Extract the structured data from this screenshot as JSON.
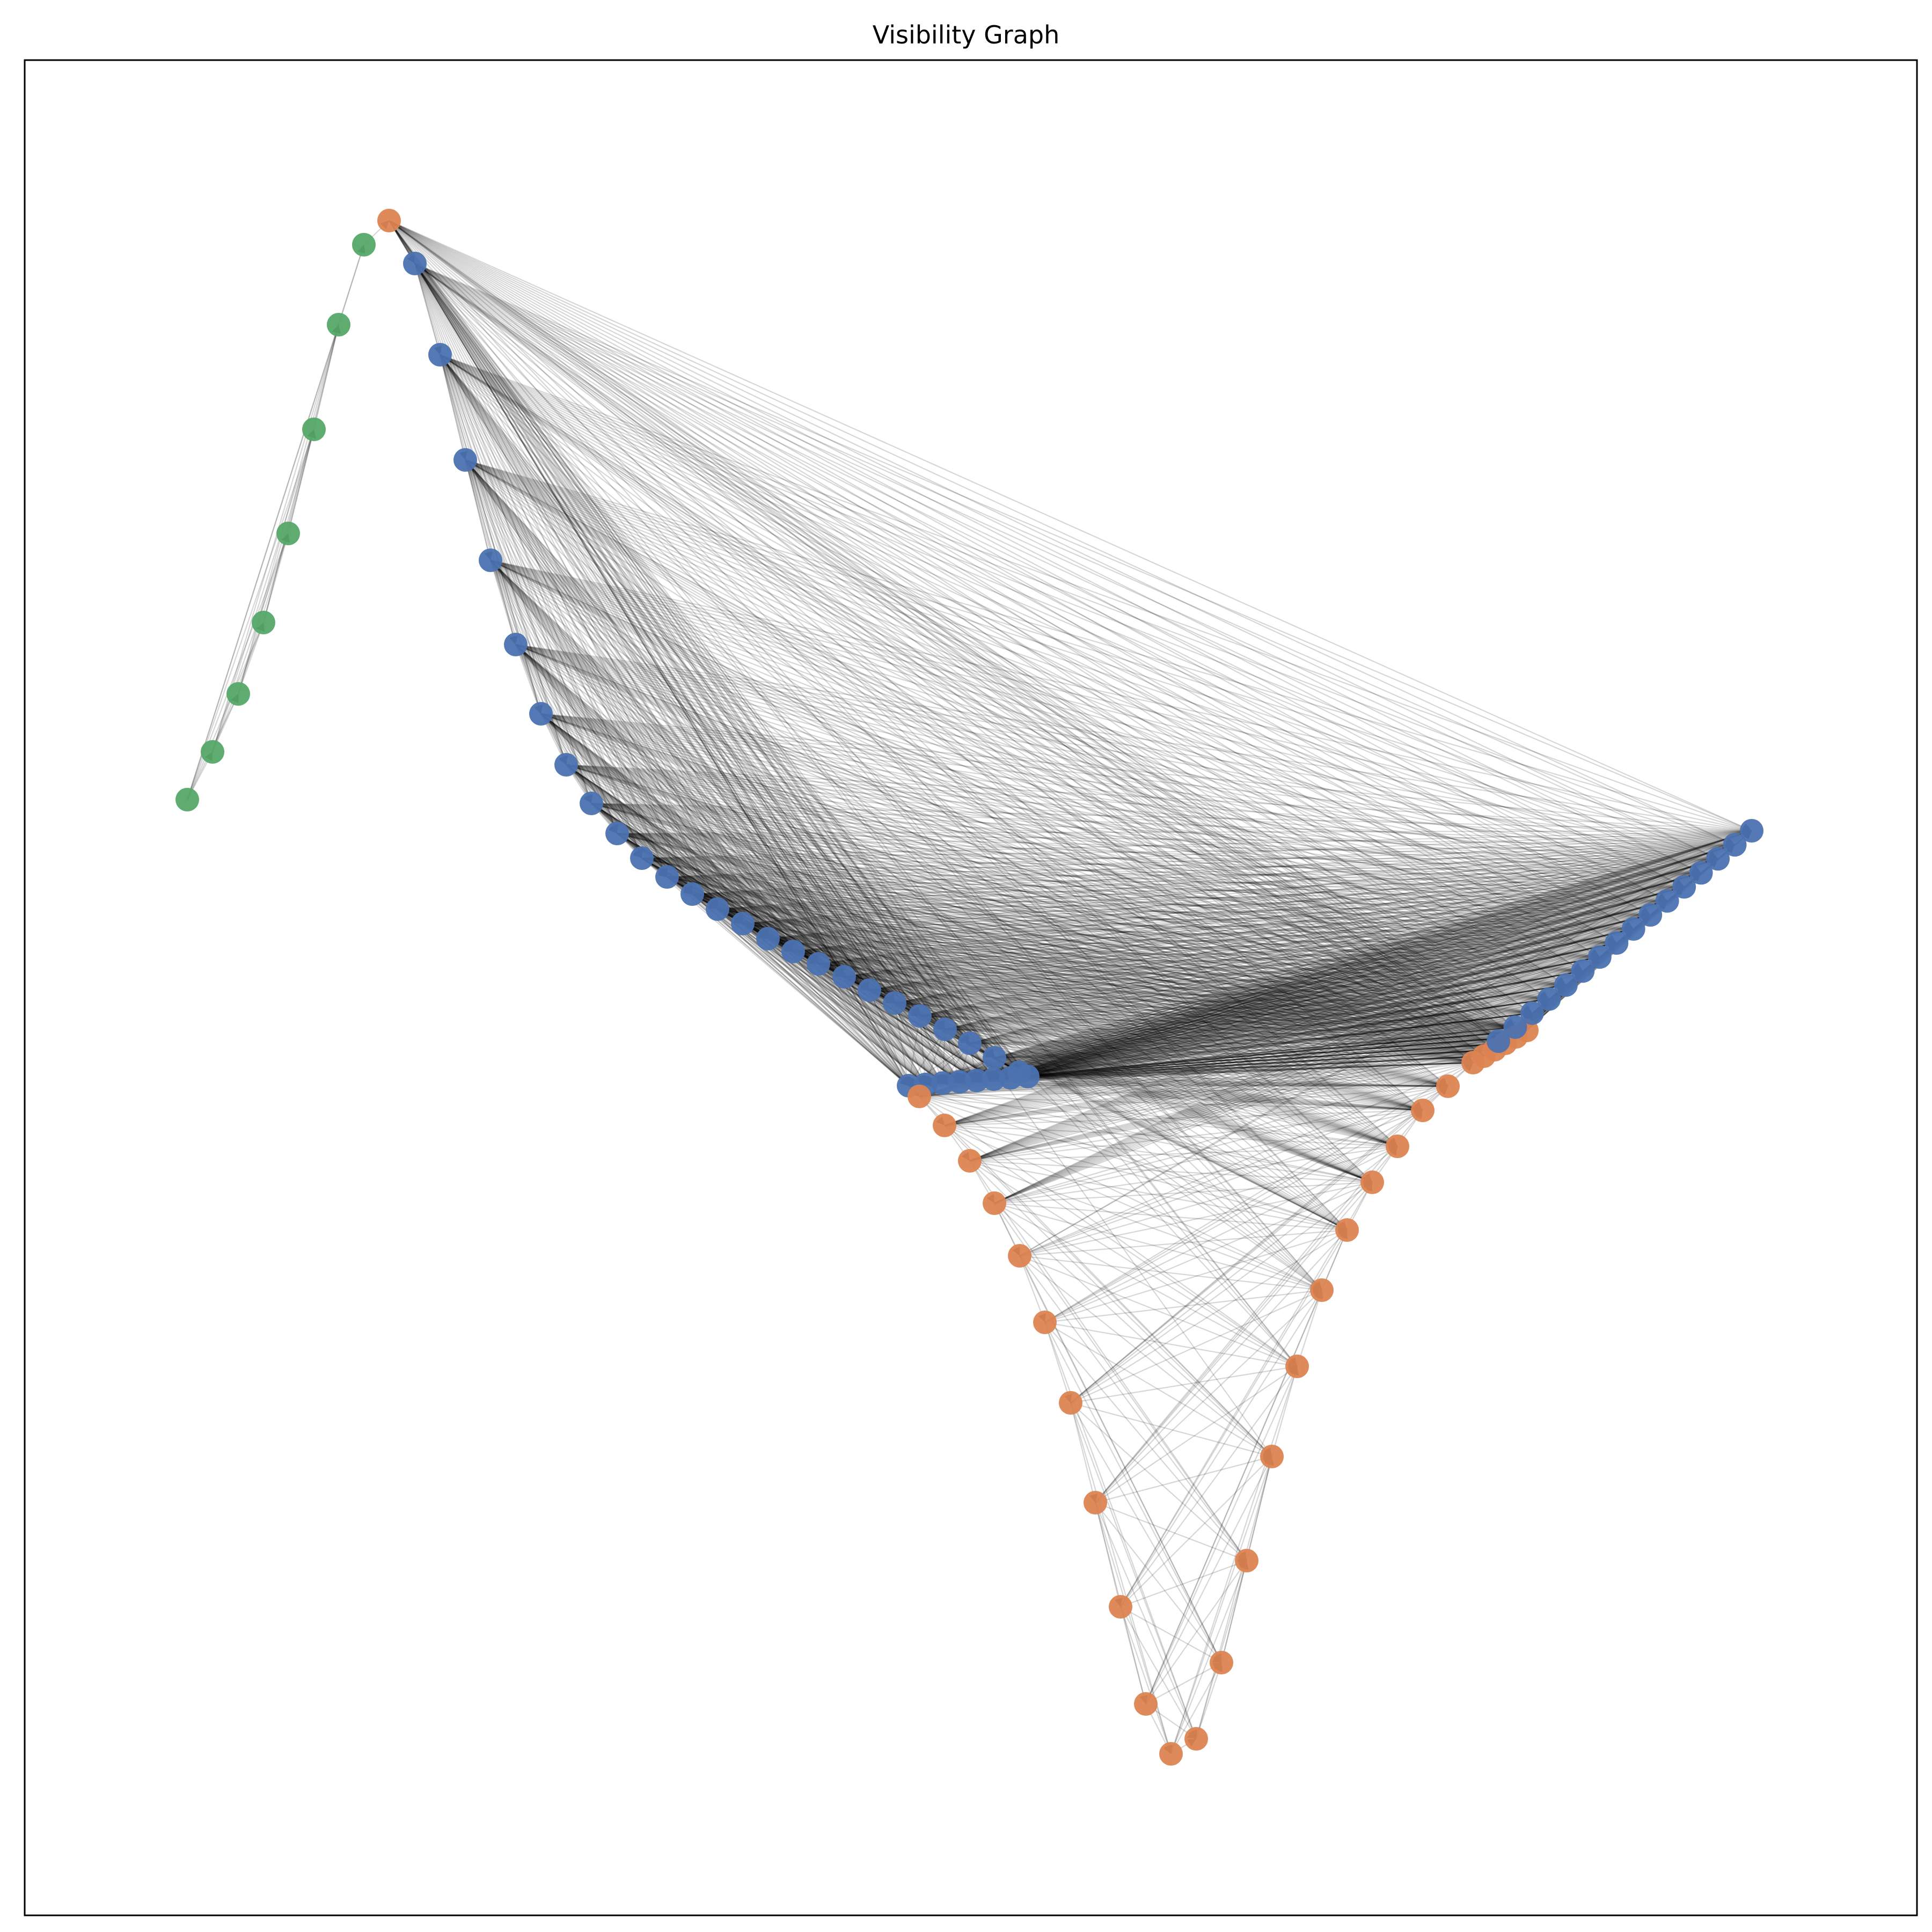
{
  "title": "Visibility Graph",
  "colors": {
    "green": "#55a868",
    "orange": "#dd8452",
    "blue": "#4c72b0",
    "edge": "#000000",
    "frame": "#000000"
  },
  "graph": {
    "directed": true,
    "edge_alpha": 0.16,
    "node_groups": [
      {
        "group": "green",
        "count": 8
      },
      {
        "group": "orange",
        "count": 1
      },
      {
        "group": "blue",
        "count": 33
      },
      {
        "group": "orange",
        "count": 28
      },
      {
        "group": "blue",
        "count": 16
      }
    ]
  }
}
